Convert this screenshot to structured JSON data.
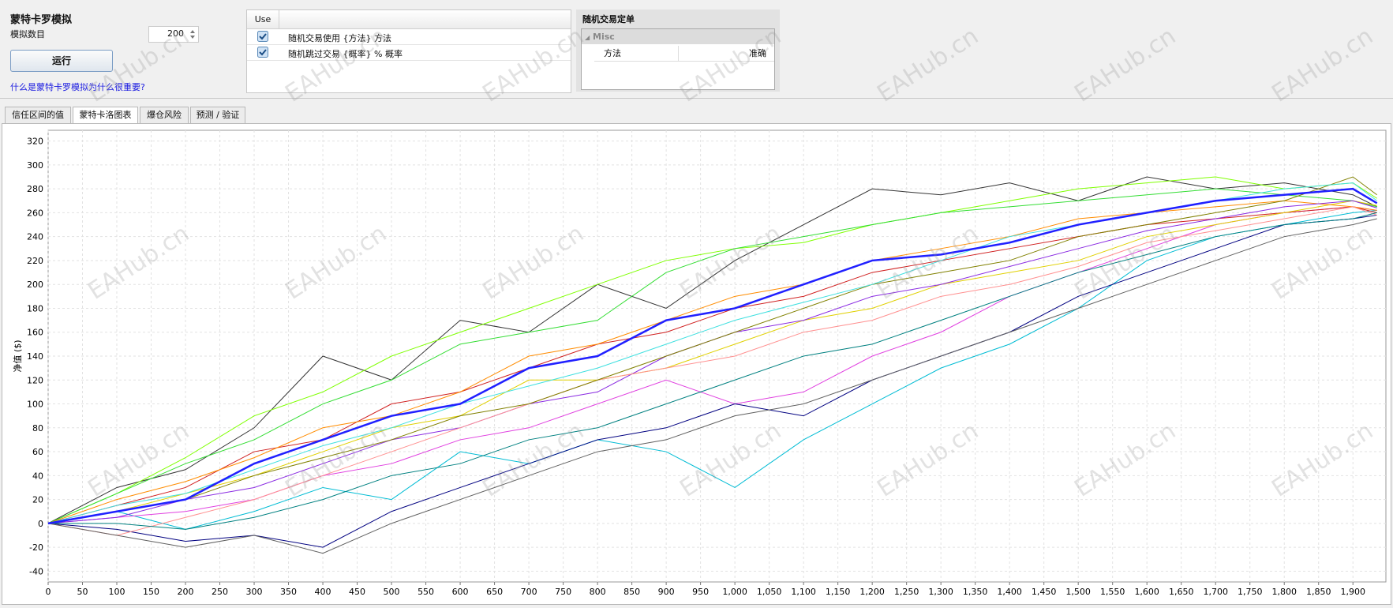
{
  "header": {
    "title": "蒙特卡罗模拟",
    "count_label": "模拟数目",
    "count_value": 200,
    "run_button": "运行",
    "help_link": "什么是蒙特卡罗模拟为什么很重要?"
  },
  "options_table": {
    "column": "Use",
    "rows": [
      {
        "checked": true,
        "label": "随机交易使用 {方法} 方法"
      },
      {
        "checked": true,
        "label": "随机跳过交易 {概率} % 概率"
      }
    ]
  },
  "properties": {
    "title": "随机交易定单",
    "group": "Misc",
    "rows": [
      [
        "方法",
        "准确"
      ]
    ]
  },
  "tabs": [
    "信任区间的值",
    "蒙特卡洛图表",
    "爆仓风险",
    "预测 / 验证"
  ],
  "active_tab": 1,
  "watermark": "EAHub.cn",
  "chart_data": {
    "type": "line",
    "y_label": "净值 ($)",
    "grid": true,
    "xlim": [
      0,
      1948
    ],
    "ylim": [
      -49,
      329
    ],
    "xticks": [
      0,
      50,
      100,
      150,
      200,
      250,
      300,
      350,
      400,
      450,
      500,
      550,
      600,
      650,
      700,
      750,
      800,
      850,
      900,
      950,
      {
        "value": 1000,
        "label": "1,000"
      },
      {
        "value": 1050,
        "label": "1,050"
      },
      {
        "value": 1100,
        "label": "1,100"
      },
      {
        "value": 1150,
        "label": "1,150"
      },
      {
        "value": 1200,
        "label": "1,200"
      },
      {
        "value": 1250,
        "label": "1,250"
      },
      {
        "value": 1300,
        "label": "1,300"
      },
      {
        "value": 1350,
        "label": "1,350"
      },
      {
        "value": 1400,
        "label": "1,400"
      },
      {
        "value": 1450,
        "label": "1,450"
      },
      {
        "value": 1500,
        "label": "1,500"
      },
      {
        "value": 1550,
        "label": "1,550"
      },
      {
        "value": 1600,
        "label": "1,600"
      },
      {
        "value": 1650,
        "label": "1,650"
      },
      {
        "value": 1700,
        "label": "1,700"
      },
      {
        "value": 1750,
        "label": "1,750"
      },
      {
        "value": 1800,
        "label": "1,800"
      },
      {
        "value": 1850,
        "label": "1,850"
      },
      {
        "value": 1900,
        "label": "1,900"
      }
    ],
    "yticks": [
      -40,
      -20,
      0,
      20,
      40,
      60,
      80,
      100,
      120,
      140,
      160,
      180,
      200,
      220,
      240,
      260,
      280,
      300,
      320
    ],
    "x": [
      0,
      100,
      200,
      300,
      400,
      500,
      600,
      700,
      800,
      900,
      1000,
      1100,
      1200,
      1300,
      1400,
      1500,
      1600,
      1700,
      1800,
      1900,
      1935
    ],
    "series": [
      {
        "color": "#333333",
        "values": [
          0,
          30,
          45,
          80,
          140,
          120,
          170,
          160,
          200,
          180,
          220,
          250,
          280,
          275,
          285,
          270,
          290,
          280,
          285,
          275,
          265
        ]
      },
      {
        "color": "#00bcd4",
        "values": [
          0,
          10,
          -5,
          10,
          30,
          20,
          60,
          50,
          70,
          60,
          30,
          70,
          100,
          130,
          150,
          180,
          220,
          240,
          250,
          260,
          262
        ]
      },
      {
        "color": "#7fff00",
        "values": [
          0,
          25,
          55,
          90,
          110,
          140,
          160,
          180,
          200,
          220,
          230,
          235,
          250,
          260,
          270,
          280,
          285,
          290,
          280,
          285,
          272
        ]
      },
      {
        "color": "#33dd33",
        "values": [
          0,
          25,
          50,
          70,
          100,
          120,
          150,
          160,
          170,
          210,
          230,
          240,
          250,
          260,
          265,
          270,
          275,
          280,
          275,
          270,
          265
        ]
      },
      {
        "color": "#e040e0",
        "values": [
          0,
          5,
          10,
          20,
          40,
          50,
          70,
          80,
          100,
          120,
          100,
          110,
          140,
          160,
          190,
          210,
          230,
          250,
          260,
          265,
          262
        ]
      },
      {
        "color": "#000080",
        "values": [
          0,
          -5,
          -15,
          -10,
          -20,
          10,
          30,
          50,
          70,
          80,
          100,
          90,
          120,
          140,
          160,
          190,
          210,
          230,
          250,
          255,
          258
        ]
      },
      {
        "color": "#d02020",
        "values": [
          0,
          15,
          30,
          60,
          70,
          100,
          110,
          130,
          150,
          160,
          180,
          190,
          210,
          220,
          230,
          240,
          250,
          255,
          260,
          265,
          260
        ]
      },
      {
        "color": "#e0d000",
        "values": [
          0,
          10,
          25,
          40,
          60,
          80,
          90,
          120,
          120,
          130,
          150,
          170,
          180,
          200,
          210,
          220,
          240,
          250,
          260,
          270,
          266
        ]
      },
      {
        "color": "#ff8c00",
        "values": [
          0,
          20,
          35,
          55,
          80,
          90,
          110,
          140,
          150,
          170,
          190,
          200,
          220,
          230,
          240,
          255,
          260,
          265,
          270,
          265,
          262
        ]
      },
      {
        "color": "#8a2be2",
        "values": [
          0,
          5,
          20,
          30,
          50,
          70,
          80,
          100,
          110,
          140,
          160,
          170,
          190,
          200,
          215,
          230,
          245,
          255,
          265,
          270,
          264
        ]
      },
      {
        "color": "#ff9090",
        "values": [
          0,
          -10,
          5,
          20,
          40,
          60,
          80,
          100,
          120,
          130,
          140,
          160,
          170,
          190,
          200,
          215,
          235,
          245,
          255,
          265,
          258
        ]
      },
      {
        "color": "#808000",
        "values": [
          0,
          10,
          20,
          40,
          55,
          70,
          90,
          100,
          120,
          140,
          160,
          180,
          200,
          210,
          220,
          240,
          250,
          260,
          270,
          290,
          275
        ]
      },
      {
        "color": "#008080",
        "values": [
          0,
          0,
          -5,
          5,
          20,
          40,
          50,
          70,
          80,
          100,
          120,
          140,
          150,
          170,
          190,
          210,
          225,
          240,
          250,
          255,
          260
        ]
      },
      {
        "color": "#40e0e0",
        "values": [
          0,
          15,
          25,
          45,
          65,
          80,
          100,
          115,
          130,
          150,
          170,
          185,
          200,
          220,
          240,
          250,
          260,
          270,
          280,
          285,
          270
        ]
      },
      {
        "color": "#606060",
        "values": [
          0,
          -10,
          -20,
          -10,
          -25,
          0,
          20,
          40,
          60,
          70,
          90,
          100,
          120,
          140,
          160,
          180,
          200,
          220,
          240,
          250,
          255
        ]
      },
      {
        "color": "#2020ff",
        "width": 2.5,
        "values": [
          0,
          10,
          20,
          50,
          70,
          90,
          100,
          130,
          140,
          170,
          180,
          200,
          220,
          225,
          235,
          250,
          260,
          270,
          275,
          280,
          268
        ]
      }
    ]
  }
}
